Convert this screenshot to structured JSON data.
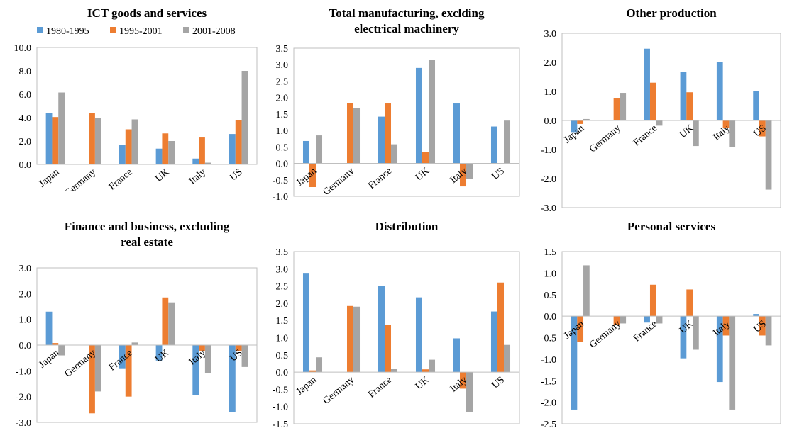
{
  "legend_series": [
    "1980-1995",
    "1995-2001",
    "2001-2008"
  ],
  "colors": {
    "1980-1995": "#5b9bd5",
    "1995-2001": "#ed7d31",
    "2001-2008": "#a5a5a5"
  },
  "chart_data": [
    {
      "type": "bar",
      "title": [
        "ICT goods and services"
      ],
      "categories": [
        "Japan",
        "Germany",
        "France",
        "UK",
        "Italy",
        "US"
      ],
      "ylim": [
        0,
        10
      ],
      "yticks": [
        "0.0",
        "2.0",
        "4.0",
        "6.0",
        "8.0",
        "10.0"
      ],
      "legend": "top",
      "series": [
        {
          "name": "1980-1995",
          "values": [
            4.4,
            0,
            1.65,
            1.35,
            0.5,
            2.6
          ]
        },
        {
          "name": "1995-2001",
          "values": [
            4.05,
            4.4,
            3.0,
            2.65,
            2.3,
            3.8
          ]
        },
        {
          "name": "2001-2008",
          "values": [
            6.15,
            4.0,
            3.85,
            2.0,
            0.15,
            8.0
          ]
        }
      ]
    },
    {
      "type": "bar",
      "title": [
        "Total manufacturing, exclding",
        "electrical machinery"
      ],
      "categories": [
        "Japan",
        "Germany",
        "France",
        "UK",
        "Italy",
        "US"
      ],
      "ylim": [
        -1,
        3.5
      ],
      "yticks": [
        "-1.0",
        "-0.5",
        "0.0",
        "0.5",
        "1.0",
        "1.5",
        "2.0",
        "2.5",
        "3.0",
        "3.5"
      ],
      "series": [
        {
          "name": "1980-1995",
          "values": [
            0.68,
            0,
            1.42,
            2.9,
            1.82,
            1.12
          ]
        },
        {
          "name": "1995-2001",
          "values": [
            -0.72,
            1.84,
            1.82,
            0.35,
            -0.7,
            -0.02
          ]
        },
        {
          "name": "2001-2008",
          "values": [
            0.85,
            1.68,
            0.58,
            3.15,
            -0.48,
            1.3
          ]
        }
      ]
    },
    {
      "type": "bar",
      "title": [
        "Other production"
      ],
      "categories": [
        "Japan",
        "Germany",
        "France",
        "UK",
        "Italy",
        "US"
      ],
      "ylim": [
        -3,
        3
      ],
      "yticks": [
        "-3.0",
        "-2.0",
        "-1.0",
        "0.0",
        "1.0",
        "2.0",
        "3.0"
      ],
      "series": [
        {
          "name": "1980-1995",
          "values": [
            -0.4,
            0,
            2.47,
            1.68,
            2.0,
            1.0
          ]
        },
        {
          "name": "1995-2001",
          "values": [
            -0.12,
            0.78,
            1.3,
            0.97,
            -0.25,
            -0.55
          ]
        },
        {
          "name": "2001-2008",
          "values": [
            0.05,
            0.95,
            -0.18,
            -0.88,
            -0.92,
            -2.38
          ]
        }
      ]
    },
    {
      "type": "bar",
      "title": [
        "Finance and business, excluding",
        "real estate"
      ],
      "categories": [
        "Japan",
        "Germany",
        "France",
        "UK",
        "Italy",
        "US"
      ],
      "ylim": [
        -3,
        3
      ],
      "yticks": [
        "-3.0",
        "-2.0",
        "-1.0",
        "0.0",
        "1.0",
        "2.0",
        "3.0"
      ],
      "series": [
        {
          "name": "1980-1995",
          "values": [
            1.3,
            0,
            -0.9,
            -0.6,
            -1.95,
            -2.6
          ]
        },
        {
          "name": "1995-2001",
          "values": [
            0.08,
            -2.65,
            -2.0,
            1.85,
            -0.22,
            -0.22
          ]
        },
        {
          "name": "2001-2008",
          "values": [
            -0.4,
            -1.8,
            0.1,
            1.66,
            -1.1,
            -0.85
          ]
        }
      ]
    },
    {
      "type": "bar",
      "title": [
        "Distribution"
      ],
      "categories": [
        "Japan",
        "Germany",
        "France",
        "UK",
        "Italy",
        "US"
      ],
      "ylim": [
        -1.5,
        3.5
      ],
      "yticks": [
        "-1.5",
        "-1.0",
        "-0.5",
        "0.0",
        "0.5",
        "1.0",
        "1.5",
        "2.0",
        "2.5",
        "3.0",
        "3.5"
      ],
      "series": [
        {
          "name": "1980-1995",
          "values": [
            2.88,
            0,
            2.5,
            2.17,
            0.98,
            1.76
          ]
        },
        {
          "name": "1995-2001",
          "values": [
            0.05,
            1.92,
            1.38,
            0.08,
            -0.48,
            2.6
          ]
        },
        {
          "name": "2001-2008",
          "values": [
            0.43,
            1.9,
            0.1,
            0.36,
            -1.15,
            0.79
          ]
        }
      ]
    },
    {
      "type": "bar",
      "title": [
        "Personal services"
      ],
      "categories": [
        "Japan",
        "Germany",
        "France",
        "UK",
        "Italy",
        "US"
      ],
      "ylim": [
        -2.5,
        1.5
      ],
      "yticks": [
        "-2.5",
        "-2.0",
        "-1.5",
        "-1.0",
        "-0.5",
        "0.0",
        "0.5",
        "1.0",
        "1.5"
      ],
      "series": [
        {
          "name": "1980-1995",
          "values": [
            -2.17,
            0,
            -0.15,
            -0.98,
            -1.53,
            0.05
          ]
        },
        {
          "name": "1995-2001",
          "values": [
            -0.6,
            -0.2,
            0.73,
            0.62,
            -0.45,
            -0.45
          ]
        },
        {
          "name": "2001-2008",
          "values": [
            1.18,
            -0.17,
            -0.17,
            -0.78,
            -2.17,
            -0.68
          ]
        }
      ]
    }
  ]
}
